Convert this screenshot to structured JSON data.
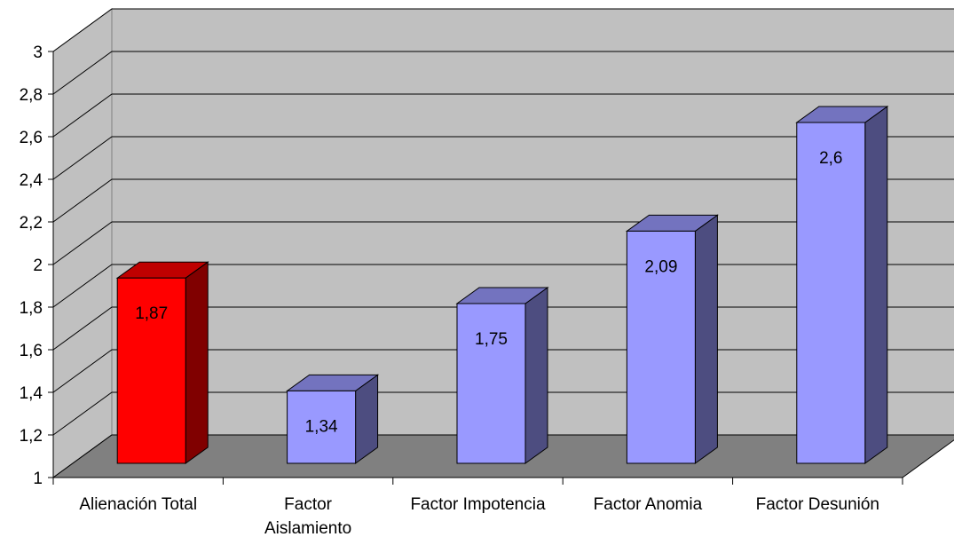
{
  "chart_data": {
    "type": "bar",
    "style": "3d-column",
    "title": "",
    "xlabel": "",
    "ylabel": "",
    "categories": [
      "Alienación Total",
      "Factor Aislamiento",
      "Factor Impotencia",
      "Factor Anomia",
      "Factor Desunión"
    ],
    "category_lines": [
      [
        "Alienación Total"
      ],
      [
        "Factor",
        "Aislamiento"
      ],
      [
        "Factor Impotencia"
      ],
      [
        "Factor Anomia"
      ],
      [
        "Factor Desunión"
      ]
    ],
    "values": [
      1.87,
      1.34,
      1.75,
      2.09,
      2.6
    ],
    "data_labels": [
      "1,87",
      "1,34",
      "1,75",
      "2,09",
      "2,6"
    ],
    "colors": [
      "#ff0000",
      "#9999ff",
      "#9999ff",
      "#9999ff",
      "#9999ff"
    ],
    "ylim": [
      1,
      3
    ],
    "yticks": [
      1,
      1.2,
      1.4,
      1.6,
      1.8,
      2,
      2.2,
      2.4,
      2.6,
      2.8,
      3
    ],
    "ytick_labels": [
      "1",
      "1,2",
      "1,4",
      "1,6",
      "1,8",
      "2",
      "2,2",
      "2,4",
      "2,6",
      "2,8",
      "3"
    ],
    "grid": true,
    "legend": "none",
    "wall_color": "#c0c0c0",
    "floor_color": "#808080"
  }
}
